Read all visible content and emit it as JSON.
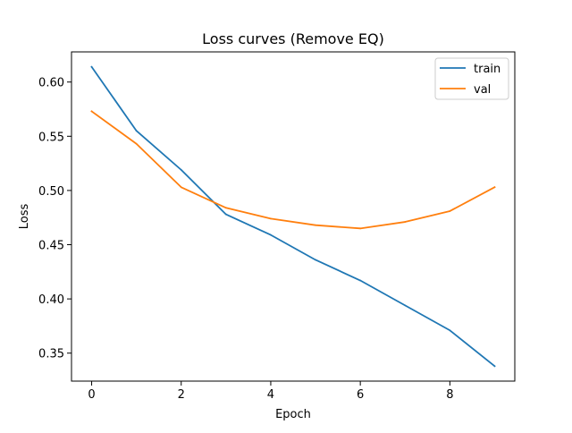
{
  "chart_data": {
    "type": "line",
    "title": "Loss curves (Remove EQ)",
    "xlabel": "Epoch",
    "ylabel": "Loss",
    "x": [
      0,
      1,
      2,
      3,
      4,
      5,
      6,
      7,
      8,
      9
    ],
    "series": [
      {
        "name": "train",
        "color": "#1f77b4",
        "values": [
          0.614,
          0.555,
          0.519,
          0.478,
          0.459,
          0.436,
          0.417,
          0.394,
          0.371,
          0.338
        ]
      },
      {
        "name": "val",
        "color": "#ff7f0e",
        "values": [
          0.573,
          0.543,
          0.503,
          0.484,
          0.474,
          0.468,
          0.465,
          0.471,
          0.481,
          0.503
        ]
      }
    ],
    "xlim": [
      -0.45,
      9.45
    ],
    "ylim": [
      0.3242,
      0.6278
    ],
    "xticks": [
      0,
      2,
      4,
      6,
      8
    ],
    "yticks": [
      0.35,
      0.4,
      0.45,
      0.5,
      0.55,
      0.6
    ],
    "xtick_labels": [
      "0",
      "2",
      "4",
      "6",
      "8"
    ],
    "ytick_labels": [
      "0.35",
      "0.40",
      "0.45",
      "0.50",
      "0.55",
      "0.60"
    ],
    "grid": false,
    "legend_position": "top-right"
  }
}
